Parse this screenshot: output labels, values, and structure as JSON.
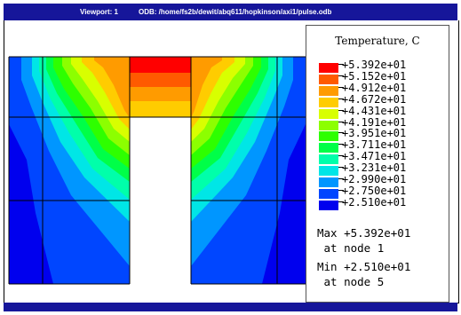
{
  "window": {
    "viewport_label": "Viewport: 1",
    "odb_label": "ODB: /home/fs2b/dewit/abq611/hopkinson/axi1/pulse.odb"
  },
  "legend": {
    "title": "Temperature, C",
    "levels": [
      {
        "label": "+5.392e+01",
        "color": "#ff0000"
      },
      {
        "label": "+5.152e+01",
        "color": "#ff5a00"
      },
      {
        "label": "+4.912e+01",
        "color": "#ff9b00"
      },
      {
        "label": "+4.672e+01",
        "color": "#ffcc00"
      },
      {
        "label": "+4.431e+01",
        "color": "#d8ff00"
      },
      {
        "label": "+4.191e+01",
        "color": "#8cff00"
      },
      {
        "label": "+3.951e+01",
        "color": "#2eff00"
      },
      {
        "label": "+3.711e+01",
        "color": "#00ff48"
      },
      {
        "label": "+3.471e+01",
        "color": "#00ffaa"
      },
      {
        "label": "+3.231e+01",
        "color": "#00e6e6"
      },
      {
        "label": "+2.990e+01",
        "color": "#0096ff"
      },
      {
        "label": "+2.750e+01",
        "color": "#0046ff"
      },
      {
        "label": "+2.510e+01",
        "color": "#0000ee"
      }
    ],
    "max_line": "Max +5.392e+01",
    "max_node": " at node 1",
    "min_line": "Min +2.510e+01",
    "min_node": " at node 5"
  },
  "colors": {
    "title_bar": "#16169a",
    "background": "#ffffff",
    "mesh_lines": "#000000"
  }
}
